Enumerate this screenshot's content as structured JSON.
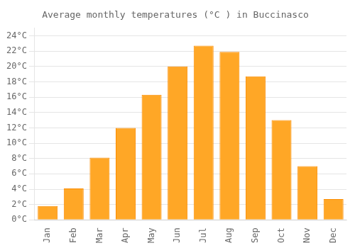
{
  "chart_data": {
    "type": "bar",
    "title": "Average monthly temperatures (°C ) in Buccinasco",
    "categories": [
      "Jan",
      "Feb",
      "Mar",
      "Apr",
      "May",
      "Jun",
      "Jul",
      "Aug",
      "Sep",
      "Oct",
      "Nov",
      "Dec"
    ],
    "values": [
      1.8,
      4.1,
      8.1,
      12.0,
      16.3,
      20.0,
      22.7,
      21.9,
      18.7,
      13.0,
      7.0,
      2.7
    ],
    "color": "#FFA726",
    "ylim": [
      0,
      25
    ],
    "yticks": [
      {
        "value": 0,
        "label": "0°C"
      },
      {
        "value": 2,
        "label": "2°C"
      },
      {
        "value": 4,
        "label": "4°C"
      },
      {
        "value": 6,
        "label": "6°C"
      },
      {
        "value": 8,
        "label": "8°C"
      },
      {
        "value": 10,
        "label": "10°C"
      },
      {
        "value": 12,
        "label": "12°C"
      },
      {
        "value": 14,
        "label": "14°C"
      },
      {
        "value": 16,
        "label": "16°C"
      },
      {
        "value": 18,
        "label": "18°C"
      },
      {
        "value": 20,
        "label": "20°C"
      },
      {
        "value": 22,
        "label": "22°C"
      },
      {
        "value": 24,
        "label": "24°C"
      }
    ],
    "grid": true
  }
}
